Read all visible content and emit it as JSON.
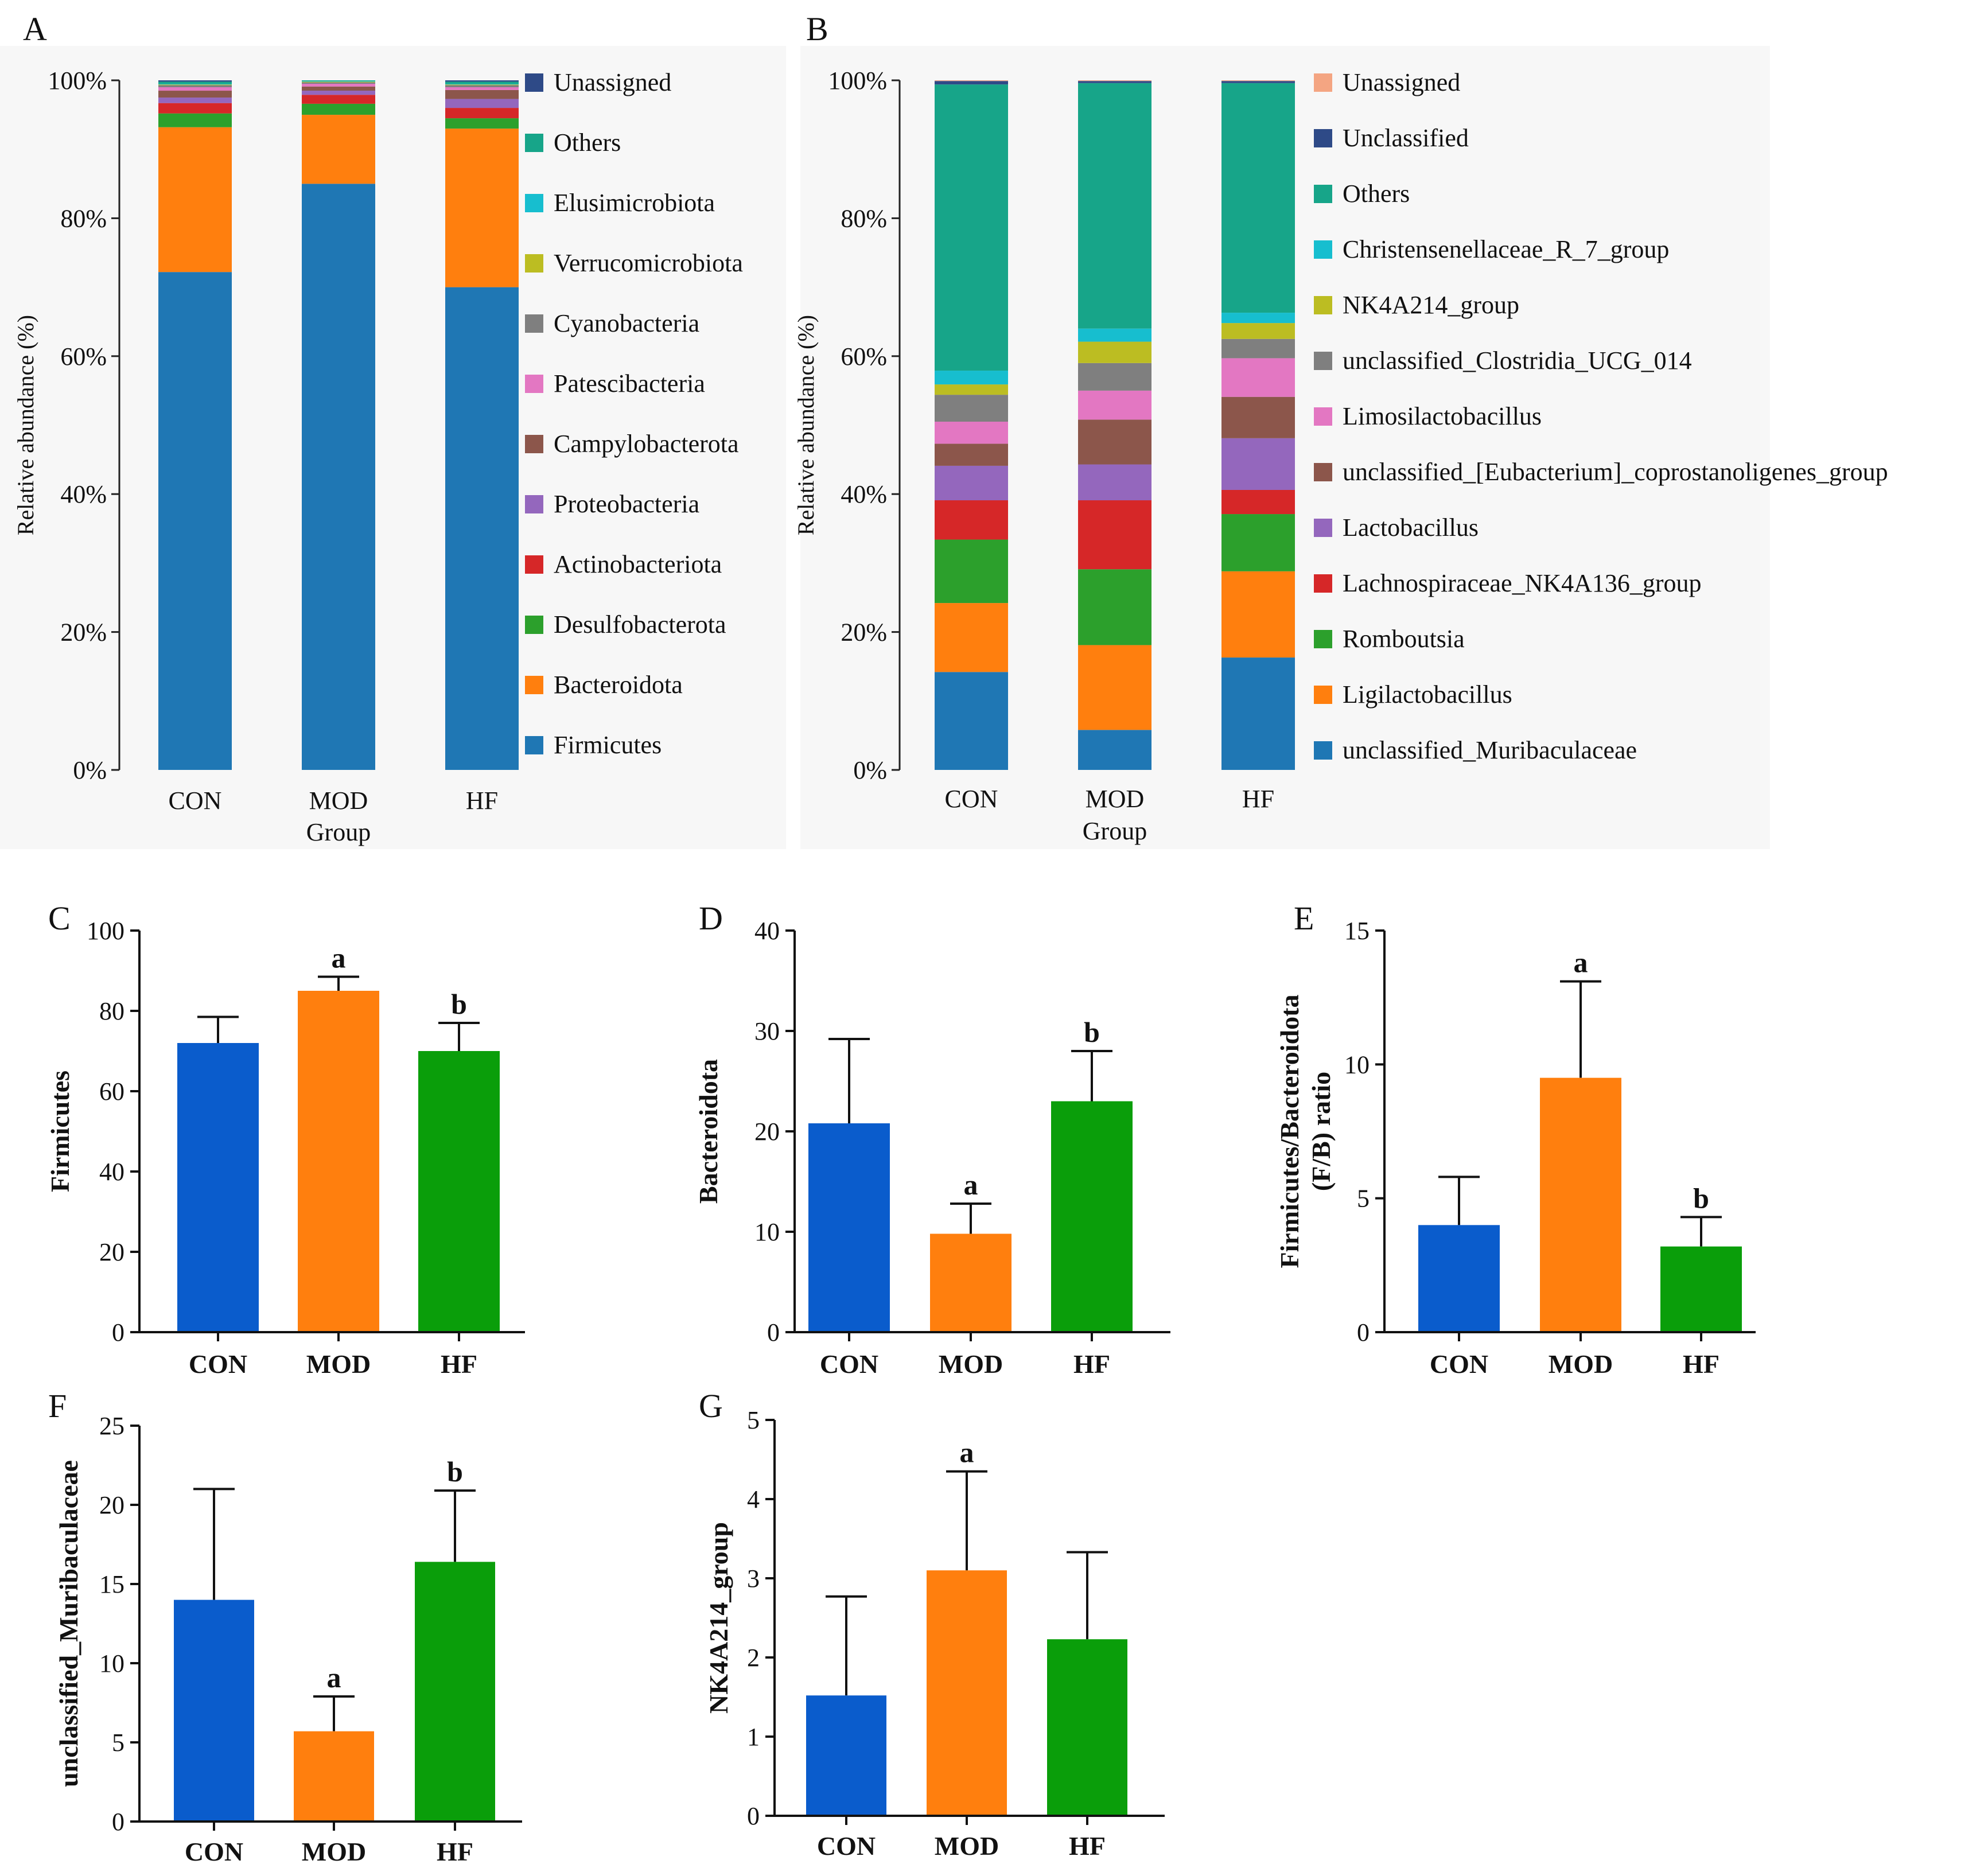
{
  "chart_data": [
    {
      "panel": "A",
      "type": "bar",
      "stacked": true,
      "categories": [
        "CON",
        "MOD",
        "HF"
      ],
      "xlabel": "Group",
      "ylabel": "Relative abundance (%)",
      "ylim": [
        0,
        100
      ],
      "yticks": [
        "0%",
        "20%",
        "40%",
        "60%",
        "80%",
        "100%"
      ],
      "series": [
        {
          "name": "Firmicutes",
          "color": "#1f77b4",
          "values": [
            72.2,
            85.0,
            70.0
          ]
        },
        {
          "name": "Bacteroidota",
          "color": "#ff7f0e",
          "values": [
            21.0,
            10.0,
            23.0
          ]
        },
        {
          "name": "Desulfobacterota",
          "color": "#2ca02c",
          "values": [
            2.0,
            1.6,
            1.5
          ]
        },
        {
          "name": "Actinobacteriota",
          "color": "#d62728",
          "values": [
            1.5,
            1.3,
            1.5
          ]
        },
        {
          "name": "Proteobacteria",
          "color": "#9467bd",
          "values": [
            0.8,
            0.6,
            1.3
          ]
        },
        {
          "name": "Campylobacterota",
          "color": "#8c564b",
          "values": [
            1.0,
            0.6,
            1.3
          ]
        },
        {
          "name": "Patescibacteria",
          "color": "#e377c2",
          "values": [
            0.5,
            0.4,
            0.4
          ]
        },
        {
          "name": "Cyanobacteria",
          "color": "#7f7f7f",
          "values": [
            0.3,
            0.2,
            0.3
          ]
        },
        {
          "name": "Verrucomicrobiota",
          "color": "#bcbd22",
          "values": [
            0.1,
            0.1,
            0.1
          ]
        },
        {
          "name": "Elusimicrobiota",
          "color": "#17becf",
          "values": [
            0.1,
            0.1,
            0.1
          ]
        },
        {
          "name": "Others",
          "color": "#17a589",
          "values": [
            0.3,
            0.1,
            0.3
          ]
        },
        {
          "name": "Unassigned",
          "color": "#2e4a87",
          "values": [
            0.2,
            0.0,
            0.2
          ]
        }
      ]
    },
    {
      "panel": "B",
      "type": "bar",
      "stacked": true,
      "categories": [
        "CON",
        "MOD",
        "HF"
      ],
      "xlabel": "Group",
      "ylabel": "Relative abundance (%)",
      "ylim": [
        0,
        100
      ],
      "yticks": [
        "0%",
        "20%",
        "40%",
        "60%",
        "80%",
        "100%"
      ],
      "series": [
        {
          "name": "unclassified_Muribaculaceae",
          "color": "#1f77b4",
          "values": [
            14.2,
            5.8,
            16.3
          ]
        },
        {
          "name": "Ligilactobacillus",
          "color": "#ff7f0e",
          "values": [
            10.0,
            12.3,
            12.5
          ]
        },
        {
          "name": "Romboutsia",
          "color": "#2ca02c",
          "values": [
            9.2,
            11.0,
            8.3
          ]
        },
        {
          "name": "Lachnospiraceae_NK4A136_group",
          "color": "#d62728",
          "values": [
            5.7,
            10.0,
            3.5
          ]
        },
        {
          "name": "Lactobacillus",
          "color": "#9467bd",
          "values": [
            5.0,
            5.2,
            7.5
          ]
        },
        {
          "name": "unclassified_[Eubacterium]_coprostanoligenes_group",
          "color": "#8c564b",
          "values": [
            3.2,
            6.5,
            6.0
          ]
        },
        {
          "name": "Limosilactobacillus",
          "color": "#e377c2",
          "values": [
            3.2,
            4.2,
            5.6
          ]
        },
        {
          "name": "unclassified_Clostridia_UCG_014",
          "color": "#7f7f7f",
          "values": [
            3.9,
            4.0,
            2.8
          ]
        },
        {
          "name": "NK4A214_group",
          "color": "#bcbd22",
          "values": [
            1.5,
            3.1,
            2.3
          ]
        },
        {
          "name": "Christensenellaceae_R_7_group",
          "color": "#17becf",
          "values": [
            2.0,
            1.9,
            1.5
          ]
        },
        {
          "name": "Others",
          "color": "#17a589",
          "values": [
            41.5,
            35.6,
            33.3
          ]
        },
        {
          "name": "Unclassified",
          "color": "#2e4a87",
          "values": [
            0.5,
            0.3,
            0.3
          ]
        },
        {
          "name": "Unassigned",
          "color": "#f4a582",
          "values": [
            0.1,
            0.1,
            0.1
          ]
        }
      ]
    },
    {
      "panel": "C",
      "type": "bar",
      "categories": [
        "CON",
        "MOD",
        "HF"
      ],
      "values": [
        72,
        85,
        70
      ],
      "errors": [
        6.5,
        3.5,
        7
      ],
      "significance": [
        "",
        "a",
        "b"
      ],
      "colors": [
        "#0a5ccc",
        "#ff7f0e",
        "#0a9e0a"
      ],
      "ylabel": "Firmicutes",
      "ylim": [
        0,
        100
      ],
      "yticks": [
        0,
        20,
        40,
        60,
        80,
        100
      ]
    },
    {
      "panel": "D",
      "type": "bar",
      "categories": [
        "CON",
        "MOD",
        "HF"
      ],
      "values": [
        20.8,
        9.8,
        23
      ],
      "errors": [
        8.4,
        3,
        5
      ],
      "significance": [
        "",
        "a",
        "b"
      ],
      "colors": [
        "#0a5ccc",
        "#ff7f0e",
        "#0a9e0a"
      ],
      "ylabel": "Bacteroidota",
      "ylim": [
        0,
        40
      ],
      "yticks": [
        0,
        10,
        20,
        30,
        40
      ]
    },
    {
      "panel": "E",
      "type": "bar",
      "categories": [
        "CON",
        "MOD",
        "HF"
      ],
      "values": [
        4,
        9.5,
        3.2
      ],
      "errors": [
        1.8,
        3.6,
        1.1
      ],
      "significance": [
        "",
        "a",
        "b"
      ],
      "colors": [
        "#0a5ccc",
        "#ff7f0e",
        "#0a9e0a"
      ],
      "ylabel": "Firmicutes/Bacteroidota",
      "ylabel2": "(F/B) ratio",
      "ylim": [
        0,
        15
      ],
      "yticks": [
        0,
        5,
        10,
        15
      ]
    },
    {
      "panel": "F",
      "type": "bar",
      "categories": [
        "CON",
        "MOD",
        "HF"
      ],
      "values": [
        14,
        5.7,
        16.4
      ],
      "errors": [
        7,
        2.2,
        4.5
      ],
      "significance": [
        "",
        "a",
        "b"
      ],
      "colors": [
        "#0a5ccc",
        "#ff7f0e",
        "#0a9e0a"
      ],
      "ylabel": "unclassified_Muribaculaceae",
      "ylim": [
        0,
        25
      ],
      "yticks": [
        0,
        5,
        10,
        15,
        20,
        25
      ]
    },
    {
      "panel": "G",
      "type": "bar",
      "categories": [
        "CON",
        "MOD",
        "HF"
      ],
      "values": [
        1.52,
        3.1,
        2.23
      ],
      "errors": [
        1.25,
        1.25,
        1.1
      ],
      "significance": [
        "",
        "a",
        ""
      ],
      "colors": [
        "#0a5ccc",
        "#ff7f0e",
        "#0a9e0a"
      ],
      "ylabel": "NK4A214_group",
      "ylim": [
        0,
        5
      ],
      "yticks": [
        0,
        1,
        2,
        3,
        4,
        5
      ]
    }
  ]
}
